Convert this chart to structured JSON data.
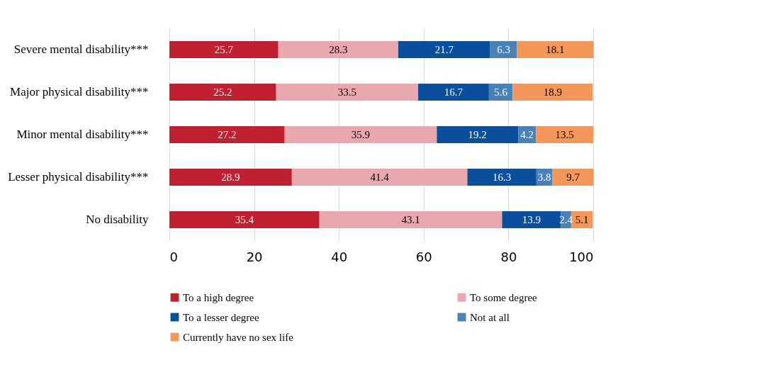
{
  "chart_data": {
    "type": "bar",
    "orientation": "horizontal",
    "stacked": true,
    "data_labels": true,
    "grid": "x",
    "legend": "bottom",
    "categories": [
      "Severe mental disability***",
      "Major physical disability***",
      "Minor mental disability***",
      "Lesser physical disability***",
      "No disability"
    ],
    "series": [
      {
        "name": "To a high degree",
        "color": "#c0202f",
        "values": [
          25.7,
          25.2,
          27.2,
          28.9,
          35.4
        ]
      },
      {
        "name": "To some degree",
        "color": "#e8a8ae",
        "values": [
          28.3,
          33.5,
          35.9,
          41.4,
          43.1
        ]
      },
      {
        "name": "To a lesser degree",
        "color": "#0a4f9c",
        "values": [
          21.7,
          16.7,
          19.2,
          16.3,
          13.9
        ]
      },
      {
        "name": "Not at all",
        "color": "#4a82b8",
        "values": [
          6.3,
          5.6,
          4.2,
          3.8,
          2.4
        ]
      },
      {
        "name": "Currently have no sex life",
        "color": "#f5965a",
        "values": [
          18.1,
          18.9,
          13.5,
          9.7,
          5.1
        ]
      }
    ],
    "xlim": [
      0,
      100
    ],
    "xticks": [
      0,
      20,
      40,
      60,
      80,
      100
    ]
  }
}
